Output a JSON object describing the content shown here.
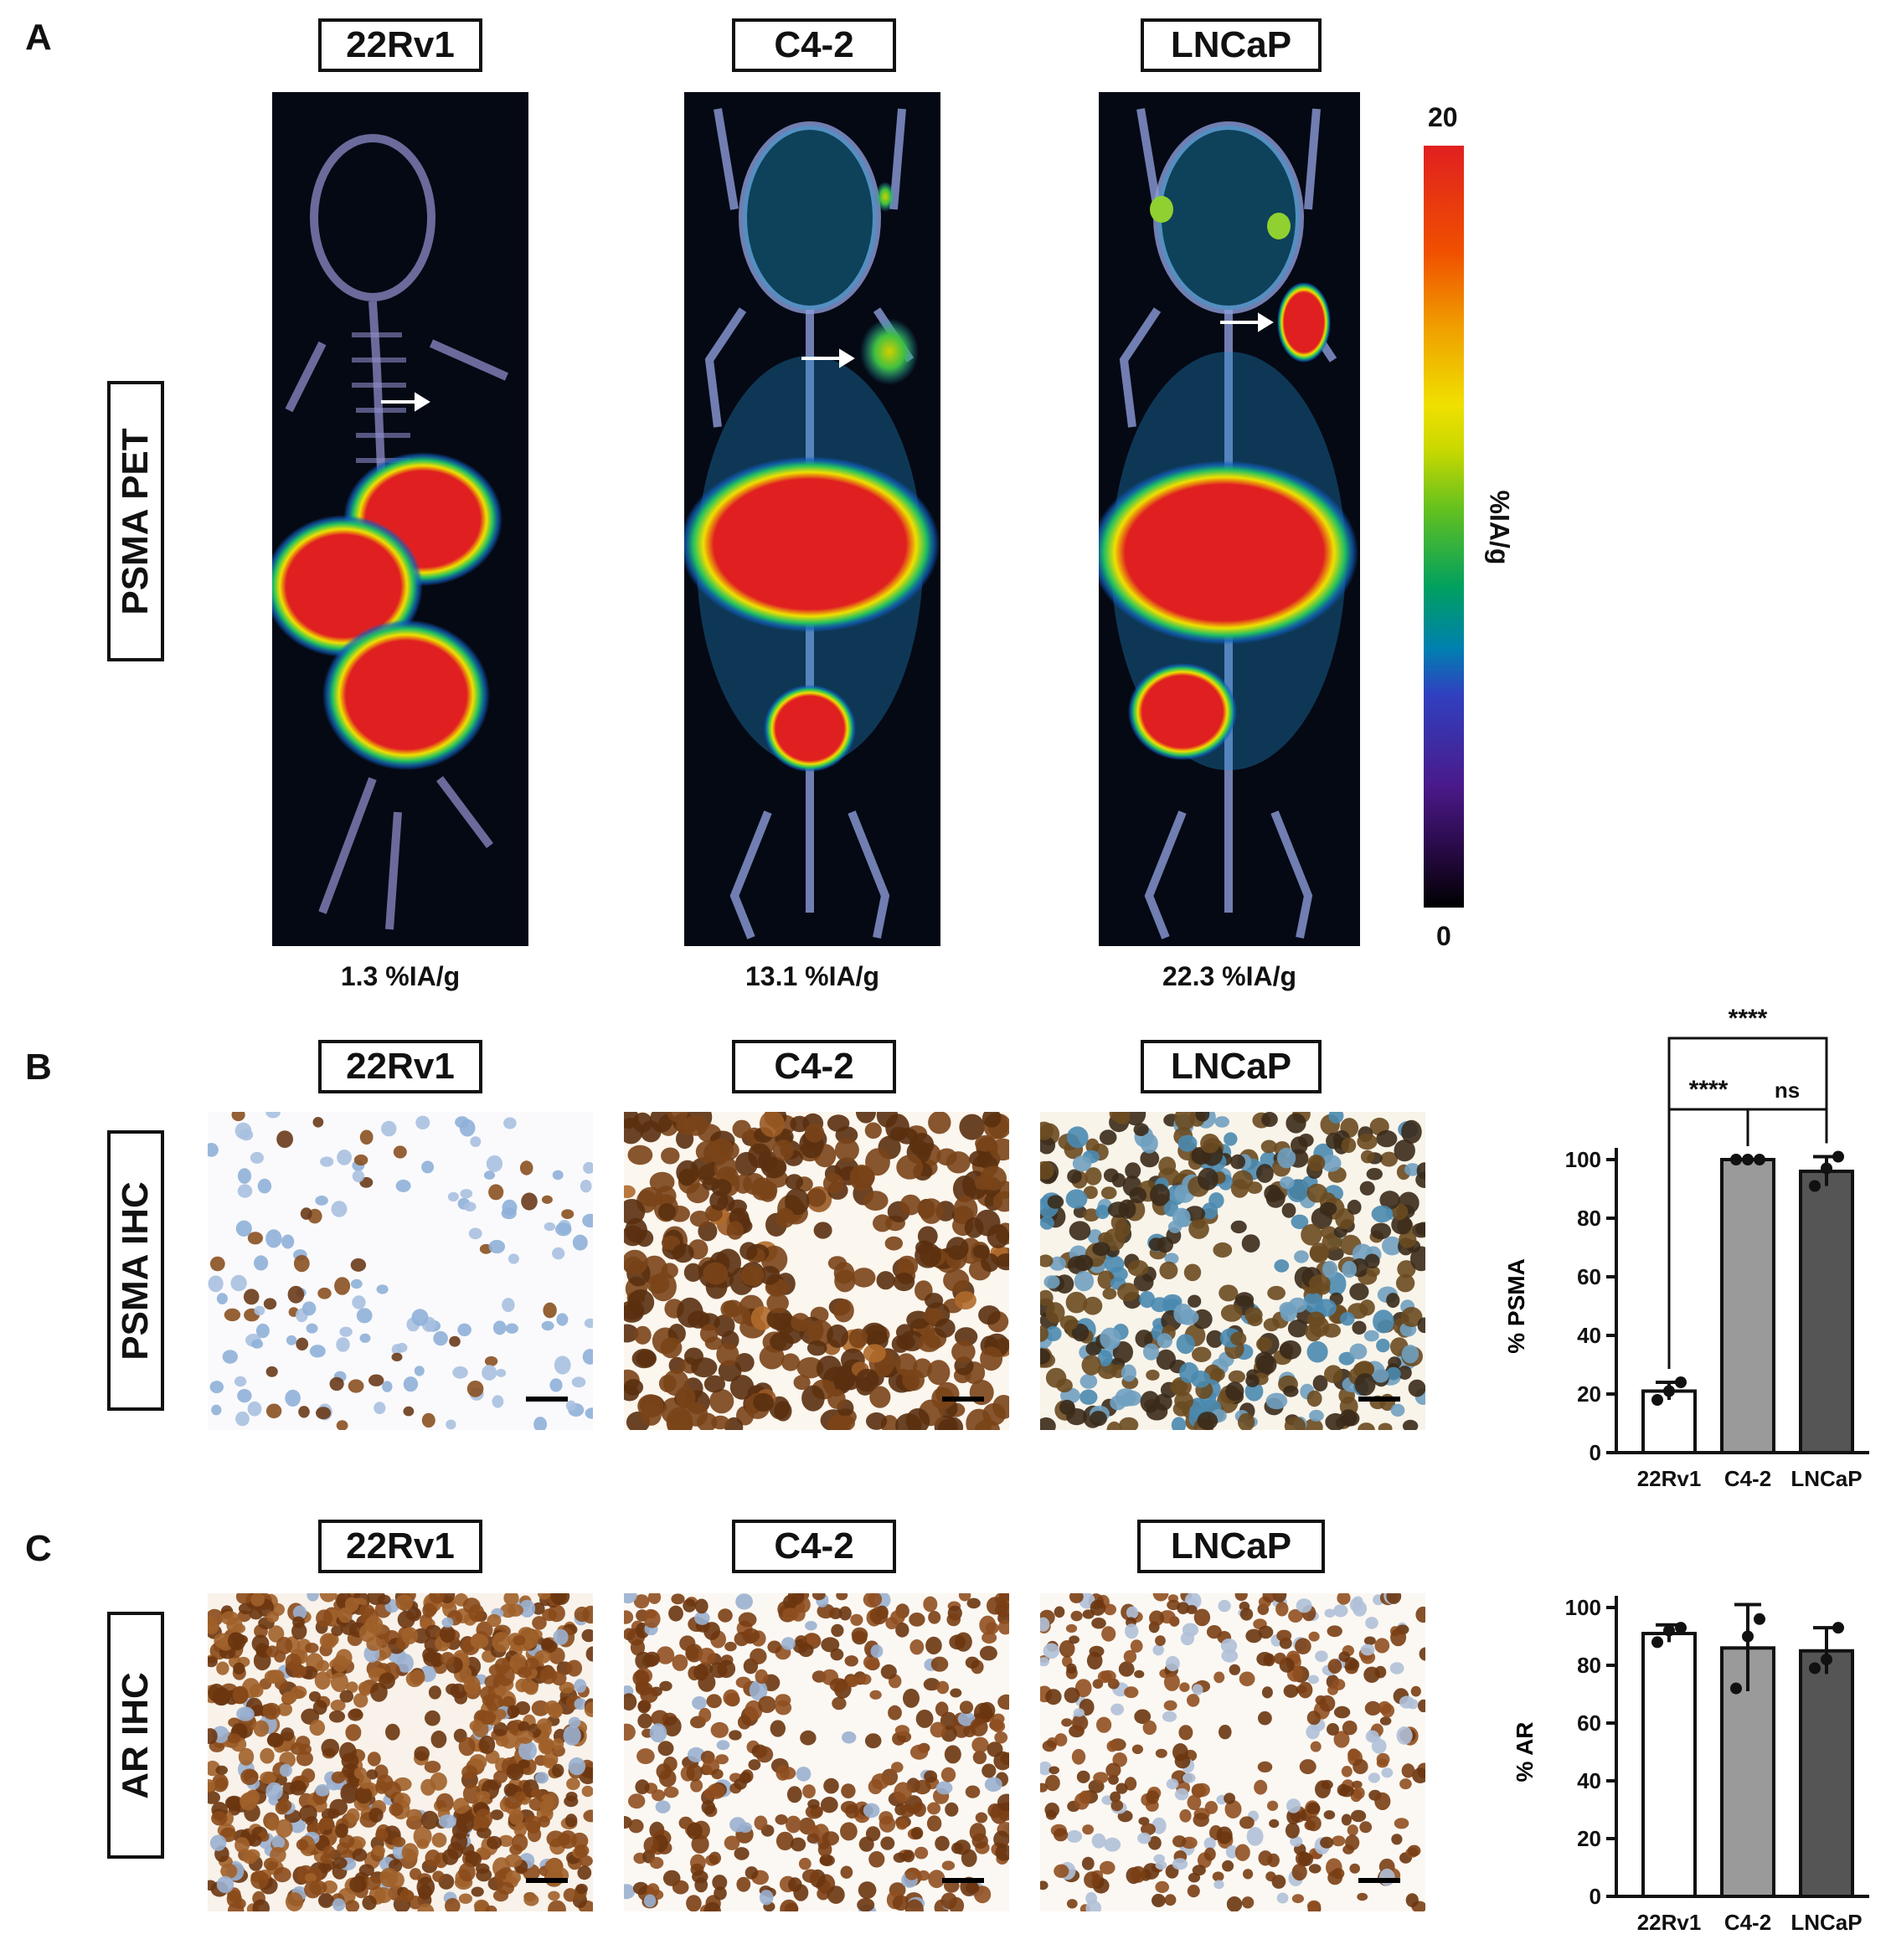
{
  "panels": {
    "a": {
      "letter": "A",
      "row_label": "PSMA PET",
      "columns": [
        {
          "label": "22Rv1",
          "uptake": "1.3 %IA/g"
        },
        {
          "label": "C4-2",
          "uptake": "13.1 %IA/g"
        },
        {
          "label": "LNCaP",
          "uptake": "22.3 %IA/g"
        }
      ],
      "colorbar": {
        "max": "20",
        "min": "0",
        "label": "%IA/g"
      }
    },
    "b": {
      "letter": "B",
      "row_label": "PSMA IHC",
      "columns": [
        {
          "label": "22Rv1"
        },
        {
          "label": "C4-2"
        },
        {
          "label": "LNCaP"
        }
      ]
    },
    "c": {
      "letter": "C",
      "row_label": "AR IHC",
      "columns": [
        {
          "label": "22Rv1"
        },
        {
          "label": "C4-2"
        },
        {
          "label": "LNCaP"
        }
      ]
    }
  },
  "chart_data": [
    {
      "type": "bar",
      "panel": "B",
      "categories": [
        "22Rv1",
        "C4-2",
        "LNCaP"
      ],
      "values": [
        21,
        100,
        96
      ],
      "errors": [
        3,
        0,
        5
      ],
      "points": [
        [
          18,
          21,
          24
        ],
        [
          100,
          100,
          100
        ],
        [
          91,
          97,
          101
        ]
      ],
      "colors": [
        "#ffffff",
        "#9a9a9a",
        "#555555"
      ],
      "ylabel": "% PSMA",
      "ylim": [
        0,
        100
      ],
      "yticks": [
        0,
        20,
        40,
        60,
        80,
        100
      ],
      "significance": [
        {
          "from": 0,
          "to": 2,
          "label": "****"
        },
        {
          "from": 0,
          "to": 1,
          "label": "****"
        },
        {
          "from": 1,
          "to": 2,
          "label": "ns"
        }
      ]
    },
    {
      "type": "bar",
      "panel": "C",
      "categories": [
        "22Rv1",
        "C4-2",
        "LNCaP"
      ],
      "values": [
        91,
        86,
        85
      ],
      "errors": [
        3,
        15,
        8
      ],
      "points": [
        [
          88,
          92,
          93
        ],
        [
          72,
          90,
          96
        ],
        [
          79,
          82,
          93
        ]
      ],
      "colors": [
        "#ffffff",
        "#9a9a9a",
        "#555555"
      ],
      "ylabel": "% AR",
      "ylim": [
        0,
        100
      ],
      "yticks": [
        0,
        20,
        40,
        60,
        80,
        100
      ],
      "significance": []
    }
  ]
}
